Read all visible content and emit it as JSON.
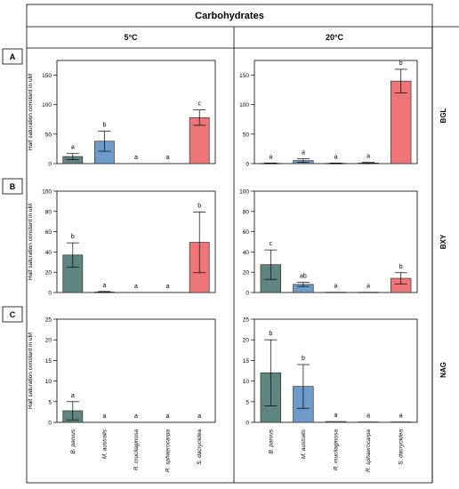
{
  "figure": {
    "header": "Carbohydrates",
    "columns": [
      "5°C",
      "20°C"
    ],
    "ylabel": "Half saturation constant in uM"
  },
  "species": [
    "B. parvus",
    "M. australis",
    "R. mucilaginosa",
    "R. sphaerocarpa",
    "S. dacryoidea"
  ],
  "colors": {
    "B. parvus": "#5f8580",
    "M. australis": "#6e9bc9",
    "R. mucilaginosa": "#6f95c4",
    "R. sphaerocarpa": "#ef7f82",
    "S. dacryoidea": "#ef7678"
  },
  "chart_data": [
    {
      "type": "bar",
      "panel": "A",
      "row_label": "BGL",
      "column": "5°C",
      "ylim": [
        0,
        175
      ],
      "yticks": [
        0,
        50,
        100,
        150
      ],
      "categories": [
        "B. parvus",
        "M. australis",
        "R. mucilaginosa",
        "R. sphaerocarpa",
        "S. dacryoidea"
      ],
      "values": [
        12,
        38,
        0,
        0,
        78
      ],
      "errors": [
        5,
        17,
        0,
        0,
        13
      ],
      "letters": [
        "a",
        "b",
        "a",
        "a",
        "c"
      ]
    },
    {
      "type": "bar",
      "panel": "",
      "row_label": "BGL",
      "column": "20°C",
      "ylim": [
        0,
        175
      ],
      "yticks": [
        0,
        50,
        100,
        150
      ],
      "categories": [
        "B. parvus",
        "M. australis",
        "R. mucilaginosa",
        "R. sphaerocarpa",
        "S. dacryoidea"
      ],
      "values": [
        0.5,
        5,
        0.5,
        1,
        140
      ],
      "errors": [
        0.5,
        3,
        0.5,
        1,
        20
      ],
      "letters": [
        "a",
        "a",
        "a",
        "a",
        "b"
      ]
    },
    {
      "type": "bar",
      "panel": "B",
      "row_label": "BXY",
      "column": "5°C",
      "ylim": [
        0,
        100
      ],
      "yticks": [
        0,
        20,
        40,
        60,
        80,
        100
      ],
      "categories": [
        "B. parvus",
        "M. australis",
        "R. mucilaginosa",
        "R. sphaerocarpa",
        "S. dacryoidea"
      ],
      "values": [
        37,
        0.5,
        0,
        0,
        49.5
      ],
      "errors": [
        12,
        0.5,
        0,
        0,
        30
      ],
      "letters": [
        "b",
        "a",
        "a",
        "a",
        "b"
      ]
    },
    {
      "type": "bar",
      "panel": "",
      "row_label": "BXY",
      "column": "20°C",
      "ylim": [
        0,
        100
      ],
      "yticks": [
        0,
        20,
        40,
        60,
        80,
        100
      ],
      "categories": [
        "B. parvus",
        "M. australis",
        "R. mucilaginosa",
        "R. sphaerocarpa",
        "S. dacryoidea"
      ],
      "values": [
        27.5,
        8,
        0.3,
        0.3,
        14
      ],
      "errors": [
        14.5,
        2,
        0.3,
        0.3,
        5.5
      ],
      "letters": [
        "c",
        "ab",
        "a",
        "a",
        "b"
      ]
    },
    {
      "type": "bar",
      "panel": "C",
      "row_label": "NAG",
      "column": "5°C",
      "ylim": [
        0,
        25
      ],
      "yticks": [
        0,
        5,
        10,
        15,
        20,
        25
      ],
      "categories": [
        "B. parvus",
        "M. australis",
        "R. mucilaginosa",
        "R. sphaerocarpa",
        "S. dacryoidea"
      ],
      "values": [
        2.8,
        0,
        0,
        0,
        0
      ],
      "errors": [
        2.2,
        0,
        0,
        0,
        0
      ],
      "letters": [
        "a",
        "a",
        "a",
        "a",
        "a"
      ]
    },
    {
      "type": "bar",
      "panel": "",
      "row_label": "NAG",
      "column": "20°C",
      "ylim": [
        0,
        25
      ],
      "yticks": [
        0,
        5,
        10,
        15,
        20,
        25
      ],
      "categories": [
        "B. parvus",
        "M. australis",
        "R. mucilaginosa",
        "R. sphaerocarpa",
        "S. dacryoidea"
      ],
      "values": [
        12,
        8.7,
        0.2,
        0.1,
        0.1
      ],
      "errors": [
        8,
        5.3,
        0.2,
        0.1,
        0.1
      ],
      "letters": [
        "b",
        "b",
        "a",
        "a",
        "a"
      ]
    }
  ]
}
